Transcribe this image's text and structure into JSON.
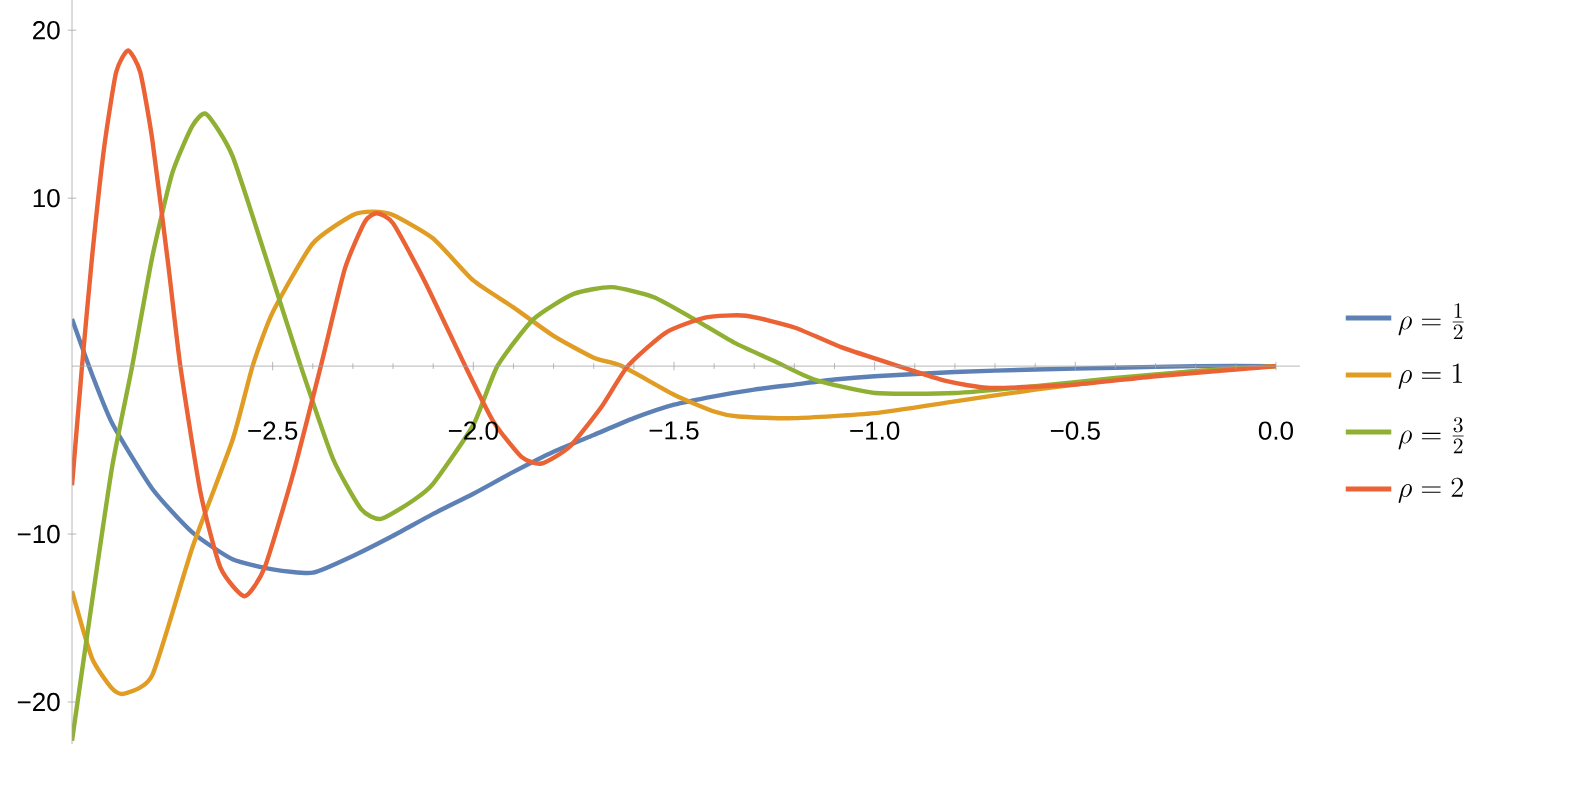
{
  "chart_data": {
    "type": "line",
    "xlim": [
      -3,
      0.06
    ],
    "ylim": [
      -22.5,
      21.8
    ],
    "xticks": [
      {
        "value": -2.5,
        "label": "−2.5"
      },
      {
        "value": -2.0,
        "label": "−2.0"
      },
      {
        "value": -1.5,
        "label": "−1.5"
      },
      {
        "value": -1.0,
        "label": "−1.0"
      },
      {
        "value": -0.5,
        "label": "−0.5"
      },
      {
        "value": 0,
        "label": "0.0"
      }
    ],
    "yticks": [
      {
        "value": -20,
        "label": "−20"
      },
      {
        "value": -10,
        "label": "−10"
      },
      10,
      20
    ],
    "legend": "right",
    "series": [
      {
        "name": "\\rho = \\frac{1}{2}",
        "color": "#5e81b5",
        "x": [
          -3,
          -2.95,
          -2.9,
          -2.8,
          -2.7,
          -2.6,
          -2.5,
          -2.4,
          -2.3,
          -2.2,
          -2.1,
          -2.0,
          -1.9,
          -1.8,
          -1.7,
          -1.6,
          -1.5,
          -1.4,
          -1.3,
          -1.2,
          -1.1,
          -1.0,
          -0.8,
          -0.6,
          -0.4,
          -0.2,
          0
        ],
        "values": [
          2.8,
          -0.5,
          -3.4,
          -7.3,
          -9.9,
          -11.5,
          -12.1,
          -12.3,
          -11.3,
          -10.1,
          -8.8,
          -7.6,
          -6.3,
          -5.1,
          -4.1,
          -3.1,
          -2.3,
          -1.8,
          -1.4,
          -1.1,
          -0.8,
          -0.6,
          -0.35,
          -0.2,
          -0.1,
          0,
          0
        ]
      },
      {
        "name": "\\rho = 1",
        "color": "#e19c24",
        "x": [
          -3,
          -2.95,
          -2.9,
          -2.87,
          -2.8,
          -2.7,
          -2.6,
          -2.55,
          -2.5,
          -2.4,
          -2.3,
          -2.25,
          -2.2,
          -2.1,
          -2.0,
          -1.9,
          -1.8,
          -1.7,
          -1.63,
          -1.5,
          -1.4,
          -1.34,
          -1.2,
          -1.0,
          -0.8,
          -0.6,
          -0.4,
          -0.2,
          0
        ],
        "values": [
          -13.4,
          -17.4,
          -19.2,
          -19.5,
          -18.4,
          -10.8,
          -4.4,
          0,
          3.2,
          7.3,
          9.0,
          9.2,
          9.0,
          7.6,
          5.1,
          3.5,
          1.8,
          0.5,
          0,
          -1.7,
          -2.7,
          -3.0,
          -3.1,
          -2.8,
          -2.1,
          -1.4,
          -0.8,
          -0.3,
          0
        ]
      },
      {
        "name": "\\rho = \\frac{3}{2}",
        "color": "#8fb032",
        "x": [
          -3,
          -2.95,
          -2.9,
          -2.85,
          -2.8,
          -2.75,
          -2.7,
          -2.665,
          -2.6,
          -2.5,
          -2.43,
          -2.35,
          -2.28,
          -2.23,
          -2.15,
          -2.1,
          -2.0,
          -1.94,
          -1.85,
          -1.75,
          -1.655,
          -1.55,
          -1.45,
          -1.35,
          -1.25,
          -1.15,
          -1.0,
          -0.8,
          -0.6,
          -0.4,
          -0.2,
          0
        ],
        "values": [
          -22.3,
          -14,
          -6,
          0,
          6.5,
          11.5,
          14.3,
          15.0,
          12.5,
          5.2,
          0,
          -5.5,
          -8.5,
          -9.1,
          -8,
          -7,
          -3.5,
          0,
          2.8,
          4.3,
          4.7,
          4.1,
          2.8,
          1.4,
          0.3,
          -0.8,
          -1.6,
          -1.6,
          -1.2,
          -0.7,
          -0.3,
          0
        ]
      },
      {
        "name": "\\rho = 2",
        "color": "#eb6235",
        "x": [
          -3,
          -2.975,
          -2.95,
          -2.92,
          -2.89,
          -2.86,
          -2.83,
          -2.8,
          -2.76,
          -2.73,
          -2.68,
          -2.63,
          -2.57,
          -2.52,
          -2.45,
          -2.38,
          -2.32,
          -2.27,
          -2.24,
          -2.2,
          -2.12,
          -2.02,
          -1.95,
          -1.88,
          -1.83,
          -1.76,
          -1.68,
          -1.615,
          -1.52,
          -1.42,
          -1.32,
          -1.2,
          -1.08,
          -0.94,
          -0.82,
          -0.71,
          -0.5,
          -0.3,
          0
        ],
        "values": [
          -7.1,
          0,
          6.5,
          13,
          17.5,
          18.8,
          17.5,
          13.5,
          6,
          0,
          -7.5,
          -12,
          -13.7,
          -12,
          -6.5,
          0,
          5.8,
          8.6,
          9.1,
          8.5,
          5,
          0,
          -3.3,
          -5.4,
          -5.8,
          -4.8,
          -2.4,
          0,
          2.0,
          2.9,
          3.0,
          2.3,
          1.1,
          0,
          -0.9,
          -1.3,
          -1.1,
          -0.6,
          0
        ]
      }
    ]
  }
}
